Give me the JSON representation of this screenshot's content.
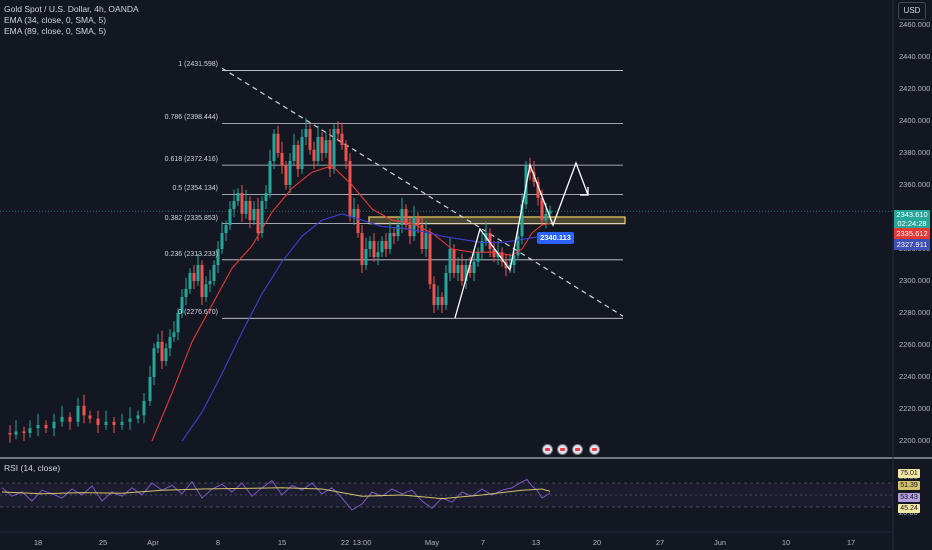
{
  "symbol": {
    "title": "Gold Spot / U.S. Dollar, 4h, OANDA",
    "ema1": "EMA (34, close, 0, SMA, 5)",
    "ema2": "EMA (89, close, 0, SMA, 5)",
    "currency": "USD"
  },
  "rsi_label": "RSI (14, close)",
  "colors": {
    "background": "#131722",
    "up": "#26a69a",
    "down": "#ef5350",
    "ema34": "#e53935",
    "ema89": "#3f3fd6",
    "rsi": "#7e57c2",
    "rsi_ma": "#d4c36a",
    "zone": "#f4d35e"
  },
  "price_tags": {
    "current": "2343.610",
    "countdown": "02:24:28",
    "ema34": "2335.612",
    "ema89": "2327.911",
    "marker": "2340.113"
  },
  "rsi_tags": [
    "75.01",
    "51.39",
    "53.43",
    "45.24"
  ],
  "rsi_axis": [
    "80.00",
    "20.00"
  ],
  "chart_data": {
    "type": "candlestick",
    "title": "Gold Spot / U.S. Dollar, 4h, OANDA",
    "y_ticks": [
      "2460.000",
      "2440.000",
      "2420.000",
      "2400.000",
      "2380.000",
      "2360.000",
      "2340.000",
      "2320.000",
      "2300.000",
      "2280.000",
      "2260.000",
      "2240.000",
      "2220.000",
      "2200.000"
    ],
    "x_ticks": [
      "18",
      "25",
      "Apr",
      "8",
      "15",
      "22",
      "13:00",
      "May",
      "7",
      "13",
      "20",
      "27",
      "Jun",
      "10",
      "17"
    ],
    "ylim": [
      2195,
      2465
    ],
    "fib_levels": [
      {
        "label": "1 (2431.598)",
        "value": 2431.598
      },
      {
        "label": "0.786 (2398.444)",
        "value": 2398.444
      },
      {
        "label": "0.618 (2372.416)",
        "value": 2372.416
      },
      {
        "label": "0.5 (2354.134)",
        "value": 2354.134
      },
      {
        "label": "0.382 (2335.853)",
        "value": 2335.853
      },
      {
        "label": "0.236 (2313.233)",
        "value": 2313.233
      },
      {
        "label": "0 (2276.670)",
        "value": 2276.67
      }
    ],
    "price_path": [
      [
        0,
        2205
      ],
      [
        8,
        2204
      ],
      [
        14,
        2206
      ],
      [
        22,
        2205
      ],
      [
        28,
        2208
      ],
      [
        36,
        2210
      ],
      [
        44,
        2208
      ],
      [
        52,
        2212
      ],
      [
        60,
        2215
      ],
      [
        68,
        2212
      ],
      [
        76,
        2222
      ],
      [
        82,
        2216
      ],
      [
        88,
        2214
      ],
      [
        96,
        2210
      ],
      [
        104,
        2212
      ],
      [
        112,
        2210
      ],
      [
        120,
        2212
      ],
      [
        128,
        2214
      ],
      [
        136,
        2216
      ],
      [
        142,
        2225
      ],
      [
        148,
        2240
      ],
      [
        152,
        2258
      ],
      [
        156,
        2262
      ],
      [
        160,
        2250
      ],
      [
        164,
        2258
      ],
      [
        168,
        2265
      ],
      [
        172,
        2268
      ],
      [
        176,
        2280
      ],
      [
        180,
        2290
      ],
      [
        184,
        2295
      ],
      [
        188,
        2305
      ],
      [
        192,
        2300
      ],
      [
        196,
        2310
      ],
      [
        200,
        2290
      ],
      [
        204,
        2298
      ],
      [
        208,
        2300
      ],
      [
        212,
        2310
      ],
      [
        216,
        2320
      ],
      [
        220,
        2330
      ],
      [
        224,
        2335
      ],
      [
        228,
        2345
      ],
      [
        232,
        2350
      ],
      [
        236,
        2355
      ],
      [
        240,
        2342
      ],
      [
        244,
        2350
      ],
      [
        248,
        2338
      ],
      [
        252,
        2345
      ],
      [
        256,
        2330
      ],
      [
        260,
        2350
      ],
      [
        264,
        2355
      ],
      [
        268,
        2375
      ],
      [
        272,
        2392
      ],
      [
        276,
        2380
      ],
      [
        280,
        2372
      ],
      [
        284,
        2360
      ],
      [
        288,
        2375
      ],
      [
        292,
        2385
      ],
      [
        296,
        2370
      ],
      [
        300,
        2390
      ],
      [
        304,
        2395
      ],
      [
        308,
        2382
      ],
      [
        312,
        2375
      ],
      [
        316,
        2390
      ],
      [
        320,
        2380
      ],
      [
        324,
        2388
      ],
      [
        328,
        2370
      ],
      [
        332,
        2395
      ],
      [
        336,
        2392
      ],
      [
        340,
        2385
      ],
      [
        344,
        2375
      ],
      [
        348,
        2340
      ],
      [
        352,
        2345
      ],
      [
        356,
        2330
      ],
      [
        360,
        2310
      ],
      [
        364,
        2320
      ],
      [
        368,
        2325
      ],
      [
        372,
        2315
      ],
      [
        376,
        2318
      ],
      [
        380,
        2325
      ],
      [
        384,
        2320
      ],
      [
        388,
        2330
      ],
      [
        392,
        2328
      ],
      [
        396,
        2335
      ],
      [
        400,
        2345
      ],
      [
        404,
        2335
      ],
      [
        408,
        2328
      ],
      [
        412,
        2340
      ],
      [
        416,
        2335
      ],
      [
        420,
        2320
      ],
      [
        424,
        2330
      ],
      [
        428,
        2298
      ],
      [
        432,
        2285
      ],
      [
        436,
        2290
      ],
      [
        440,
        2285
      ],
      [
        444,
        2305
      ],
      [
        448,
        2320
      ],
      [
        452,
        2305
      ],
      [
        456,
        2310
      ],
      [
        460,
        2300
      ],
      [
        464,
        2310
      ],
      [
        468,
        2305
      ],
      [
        472,
        2312
      ],
      [
        476,
        2318
      ],
      [
        480,
        2325
      ],
      [
        484,
        2330
      ],
      [
        488,
        2320
      ],
      [
        492,
        2315
      ],
      [
        496,
        2318
      ],
      [
        500,
        2312
      ],
      [
        504,
        2308
      ],
      [
        508,
        2310
      ],
      [
        512,
        2316
      ],
      [
        516,
        2328
      ],
      [
        520,
        2348
      ],
      [
        524,
        2372
      ],
      [
        528,
        2368
      ],
      [
        532,
        2362
      ],
      [
        536,
        2352
      ],
      [
        540,
        2338
      ],
      [
        544,
        2342
      ],
      [
        548,
        2344
      ]
    ],
    "ema34": [
      [
        150,
        2200
      ],
      [
        170,
        2230
      ],
      [
        190,
        2262
      ],
      [
        210,
        2285
      ],
      [
        230,
        2308
      ],
      [
        250,
        2322
      ],
      [
        270,
        2343
      ],
      [
        290,
        2358
      ],
      [
        310,
        2368
      ],
      [
        330,
        2372
      ],
      [
        350,
        2360
      ],
      [
        370,
        2345
      ],
      [
        390,
        2338
      ],
      [
        410,
        2336
      ],
      [
        430,
        2330
      ],
      [
        450,
        2320
      ],
      [
        470,
        2318
      ],
      [
        490,
        2318
      ],
      [
        510,
        2316
      ],
      [
        520,
        2320
      ],
      [
        530,
        2330
      ],
      [
        540,
        2335
      ],
      [
        548,
        2336
      ]
    ],
    "ema89": [
      [
        180,
        2200
      ],
      [
        200,
        2218
      ],
      [
        220,
        2242
      ],
      [
        240,
        2268
      ],
      [
        260,
        2292
      ],
      [
        280,
        2312
      ],
      [
        300,
        2328
      ],
      [
        320,
        2338
      ],
      [
        340,
        2342
      ],
      [
        360,
        2338
      ],
      [
        380,
        2334
      ],
      [
        400,
        2333
      ],
      [
        420,
        2331
      ],
      [
        440,
        2328
      ],
      [
        460,
        2326
      ],
      [
        480,
        2324
      ],
      [
        500,
        2324
      ],
      [
        520,
        2326
      ],
      [
        540,
        2328
      ],
      [
        548,
        2328
      ]
    ],
    "rsi": [
      [
        0,
        62
      ],
      [
        10,
        48
      ],
      [
        20,
        55
      ],
      [
        30,
        40
      ],
      [
        40,
        58
      ],
      [
        50,
        52
      ],
      [
        60,
        45
      ],
      [
        70,
        60
      ],
      [
        80,
        50
      ],
      [
        90,
        65
      ],
      [
        100,
        40
      ],
      [
        110,
        55
      ],
      [
        120,
        48
      ],
      [
        130,
        62
      ],
      [
        140,
        50
      ],
      [
        150,
        70
      ],
      [
        160,
        58
      ],
      [
        170,
        66
      ],
      [
        180,
        52
      ],
      [
        190,
        72
      ],
      [
        200,
        45
      ],
      [
        210,
        60
      ],
      [
        220,
        68
      ],
      [
        230,
        55
      ],
      [
        240,
        70
      ],
      [
        250,
        48
      ],
      [
        260,
        62
      ],
      [
        270,
        74
      ],
      [
        280,
        50
      ],
      [
        290,
        66
      ],
      [
        300,
        58
      ],
      [
        310,
        70
      ],
      [
        320,
        52
      ],
      [
        330,
        62
      ],
      [
        340,
        45
      ],
      [
        350,
        25
      ],
      [
        360,
        35
      ],
      [
        370,
        55
      ],
      [
        380,
        48
      ],
      [
        390,
        60
      ],
      [
        400,
        52
      ],
      [
        410,
        58
      ],
      [
        420,
        40
      ],
      [
        430,
        28
      ],
      [
        440,
        45
      ],
      [
        450,
        38
      ],
      [
        460,
        55
      ],
      [
        470,
        48
      ],
      [
        480,
        60
      ],
      [
        490,
        50
      ],
      [
        500,
        58
      ],
      [
        510,
        62
      ],
      [
        520,
        72
      ],
      [
        525,
        76
      ],
      [
        530,
        65
      ],
      [
        535,
        58
      ],
      [
        540,
        45
      ],
      [
        548,
        53
      ]
    ],
    "rsi_ma": [
      [
        0,
        55
      ],
      [
        40,
        52
      ],
      [
        80,
        54
      ],
      [
        120,
        53
      ],
      [
        160,
        58
      ],
      [
        200,
        60
      ],
      [
        240,
        61
      ],
      [
        280,
        62
      ],
      [
        320,
        60
      ],
      [
        360,
        48
      ],
      [
        400,
        50
      ],
      [
        440,
        44
      ],
      [
        480,
        50
      ],
      [
        520,
        58
      ],
      [
        540,
        60
      ],
      [
        548,
        56
      ]
    ]
  }
}
